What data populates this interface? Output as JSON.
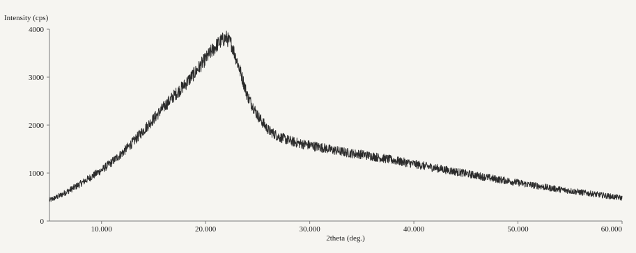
{
  "chart_data": {
    "type": "line",
    "title": "",
    "xlabel": "2theta (deg.)",
    "ylabel": "Intensity (cps)",
    "xlim": [
      5,
      60
    ],
    "ylim": [
      0,
      4000
    ],
    "x_ticks": [
      10,
      20,
      30,
      40,
      50,
      60
    ],
    "x_tick_labels": [
      "10.000",
      "20.000",
      "30.000",
      "40.000",
      "50.000",
      "60.000"
    ],
    "y_ticks": [
      0,
      1000,
      2000,
      3000,
      4000
    ],
    "y_tick_labels": [
      "0",
      "1000",
      "2000",
      "3000",
      "4000"
    ],
    "grid": false,
    "legend": "none",
    "line_color": "#2b2b2b",
    "series": [
      {
        "x": [
          5,
          6,
          7,
          8,
          9,
          10,
          11,
          12,
          13,
          14,
          15,
          16,
          17,
          18,
          19,
          20,
          20.5,
          21,
          21.5,
          22,
          22.5,
          23,
          23.5,
          24,
          25,
          26,
          27,
          28,
          29,
          30,
          31,
          32,
          33,
          34,
          35,
          36,
          37,
          38,
          39,
          40,
          41,
          42,
          43,
          44,
          45,
          46,
          47,
          48,
          49,
          50,
          51,
          52,
          53,
          54,
          55,
          56,
          57,
          58,
          59,
          60
        ],
        "values": [
          430,
          530,
          650,
          780,
          920,
          1060,
          1230,
          1420,
          1640,
          1880,
          2130,
          2380,
          2620,
          2840,
          3100,
          3380,
          3520,
          3650,
          3760,
          3820,
          3680,
          3350,
          3000,
          2620,
          2200,
          1900,
          1760,
          1680,
          1620,
          1580,
          1540,
          1490,
          1450,
          1410,
          1390,
          1350,
          1310,
          1270,
          1230,
          1190,
          1150,
          1110,
          1070,
          1030,
          990,
          950,
          910,
          870,
          840,
          800,
          760,
          730,
          690,
          660,
          630,
          600,
          570,
          540,
          510,
          480
        ]
      }
    ]
  }
}
